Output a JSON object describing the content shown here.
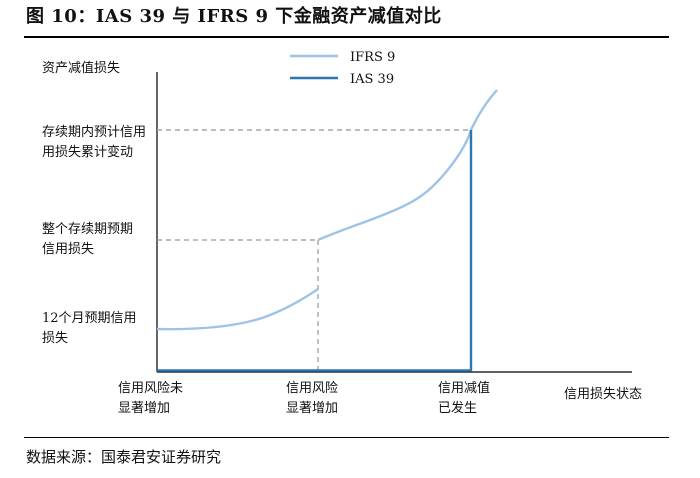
{
  "title": "图 10：IAS 39 与 IFRS 9 下金融资产减值对比",
  "source": "数据来源：国泰君安证券研究",
  "y_axis_label": "资产减值损失",
  "x_axis_label": "信用损失状态",
  "y_levels": [
    {
      "lines": [
        "存续期内预计信用",
        "用损失累计变动"
      ]
    },
    {
      "lines": [
        "整个存续期预期",
        "信用损失"
      ]
    },
    {
      "lines": [
        "12个月预期信用",
        "损失"
      ]
    }
  ],
  "x_stages": [
    {
      "lines": [
        "信用风险未",
        "显著增加"
      ]
    },
    {
      "lines": [
        "信用风险",
        "显著增加"
      ]
    },
    {
      "lines": [
        "信用减值",
        "已发生"
      ]
    }
  ],
  "legend": [
    {
      "name": "IFRS 9",
      "color": "#9dc3e6"
    },
    {
      "name": "IAS 39",
      "color": "#2e75b6"
    }
  ],
  "colors": {
    "ifrs9": "#9dc3e6",
    "ias39": "#2e75b6",
    "axis": "#000000",
    "guide": "#a6a6a6"
  }
}
